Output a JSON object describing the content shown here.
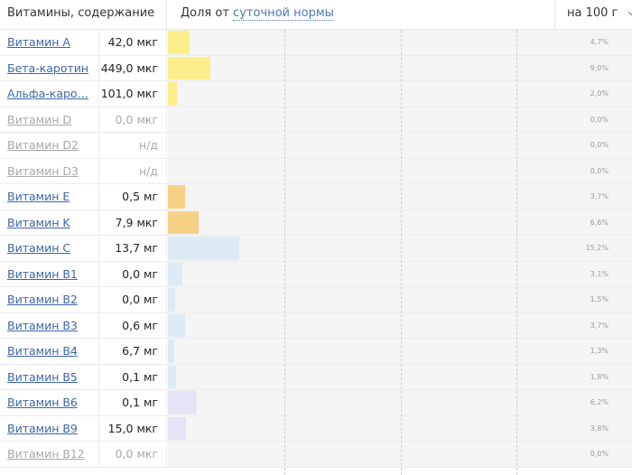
{
  "header": {
    "title": "Витамины, содержание",
    "share_prefix": "Доля от",
    "share_link": "суточной нормы",
    "per_amount": "на 100 г"
  },
  "colors": {
    "yellow": "#fbee8a",
    "orange": "#f7d185",
    "light_blue": "#dde9f5",
    "lavender": "#e3e3f5",
    "link": "#3e66a8"
  },
  "rows": [
    {
      "name": "Витамин A",
      "value": "42,0 мкг",
      "pct": "4,7%",
      "fraction": 0.047,
      "color": "#fbee8a",
      "muted": false
    },
    {
      "name": "Бета-каротин",
      "value": "449,0 мкг",
      "pct": "9,0%",
      "fraction": 0.09,
      "color": "#fbee8a",
      "muted": false
    },
    {
      "name": "Альфа-каро…",
      "value": "101,0 мкг",
      "pct": "2,0%",
      "fraction": 0.02,
      "color": "#fbee8a",
      "muted": false
    },
    {
      "name": "Витамин D",
      "value": "0,0 мкг",
      "pct": "0,0%",
      "fraction": 0,
      "color": "#fbee8a",
      "muted": true
    },
    {
      "name": "Витамин D2",
      "value": "н/д",
      "pct": "0,0%",
      "fraction": 0,
      "color": "#fbee8a",
      "muted": true
    },
    {
      "name": "Витамин D3",
      "value": "н/д",
      "pct": "0,0%",
      "fraction": 0,
      "color": "#fbee8a",
      "muted": true
    },
    {
      "name": "Витамин E",
      "value": "0,5 мг",
      "pct": "3,7%",
      "fraction": 0.037,
      "color": "#f7d185",
      "muted": false
    },
    {
      "name": "Витамин K",
      "value": "7,9 мкг",
      "pct": "6,6%",
      "fraction": 0.066,
      "color": "#f7d185",
      "muted": false
    },
    {
      "name": "Витамин C",
      "value": "13,7 мг",
      "pct": "15,2%",
      "fraction": 0.152,
      "color": "#dde9f5",
      "muted": false
    },
    {
      "name": "Витамин B1",
      "value": "0,0 мг",
      "pct": "3,1%",
      "fraction": 0.031,
      "color": "#dde9f5",
      "muted": false
    },
    {
      "name": "Витамин B2",
      "value": "0,0 мг",
      "pct": "1,5%",
      "fraction": 0.015,
      "color": "#dde9f5",
      "muted": false
    },
    {
      "name": "Витамин B3",
      "value": "0,6 мг",
      "pct": "3,7%",
      "fraction": 0.037,
      "color": "#dde9f5",
      "muted": false
    },
    {
      "name": "Витамин B4",
      "value": "6,7 мг",
      "pct": "1,3%",
      "fraction": 0.013,
      "color": "#dde9f5",
      "muted": false
    },
    {
      "name": "Витамин B5",
      "value": "0,1 мг",
      "pct": "1,8%",
      "fraction": 0.018,
      "color": "#dde9f5",
      "muted": false
    },
    {
      "name": "Витамин B6",
      "value": "0,1 мг",
      "pct": "6,2%",
      "fraction": 0.062,
      "color": "#e3e3f5",
      "muted": false
    },
    {
      "name": "Витамин B9",
      "value": "15,0 мкг",
      "pct": "3,8%",
      "fraction": 0.038,
      "color": "#e3e3f5",
      "muted": false
    },
    {
      "name": "Витамин B12",
      "value": "0,0 мкг",
      "pct": "0,0%",
      "fraction": 0,
      "color": "#e3e3f5",
      "muted": true
    }
  ],
  "scale": {
    "max_fraction": 0.5,
    "grid_fractions": [
      0.25,
      0.5,
      0.75
    ]
  }
}
